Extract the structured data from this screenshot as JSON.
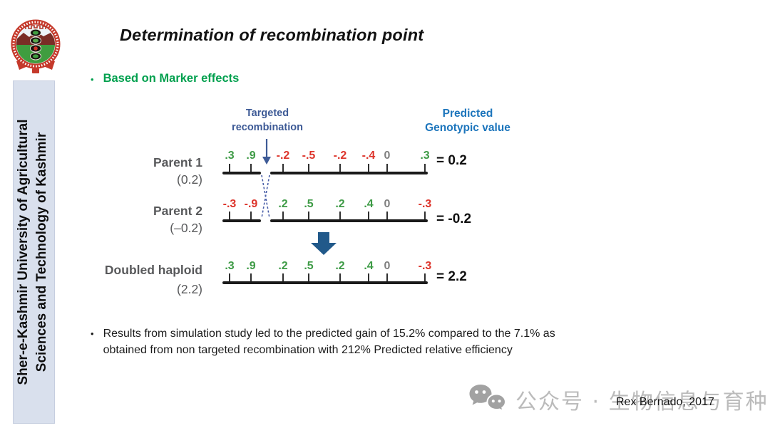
{
  "slide": {
    "title": "Determination of recombination point",
    "bullet_char": "•",
    "section_bullet": "Based on Marker effects",
    "results_line1": "Results from simulation study led to the predicted gain of 15.2% compared to the 7.1% as",
    "results_line2": "obtained from non targeted recombination with 212% Predicted relative efficiency",
    "citation": "Rex Bernado, 2017"
  },
  "sidebar": {
    "institution_line1": "Sher-e-Kashmir University of Agricultural",
    "institution_line2": "Sciences and Technology of Kashmir",
    "logo": "university-emblem"
  },
  "diagram": {
    "targeted_label": [
      "Targeted",
      "recombination"
    ],
    "predicted_label": [
      "Predicted",
      "Genotypic value"
    ],
    "rows": [
      {
        "name": "Parent 1",
        "paren": "(0.2)",
        "result": "= 0.2",
        "broken": true,
        "markers": [
          {
            "v": ".3",
            "c": "green"
          },
          {
            "v": ".9",
            "c": "green"
          },
          {
            "v": "-.2",
            "c": "red"
          },
          {
            "v": "-.5",
            "c": "red"
          },
          {
            "v": "-.2",
            "c": "red"
          },
          {
            "v": "-.4",
            "c": "red"
          },
          {
            "v": "0",
            "c": "gray"
          },
          {
            "v": ".3",
            "c": "green"
          }
        ]
      },
      {
        "name": "Parent 2",
        "paren": "(–0.2)",
        "result": "= -0.2",
        "broken": true,
        "markers": [
          {
            "v": "-.3",
            "c": "red"
          },
          {
            "v": "-.9",
            "c": "red"
          },
          {
            "v": ".2",
            "c": "green"
          },
          {
            "v": ".5",
            "c": "green"
          },
          {
            "v": ".2",
            "c": "green"
          },
          {
            "v": ".4",
            "c": "green"
          },
          {
            "v": "0",
            "c": "gray"
          },
          {
            "v": "-.3",
            "c": "red"
          }
        ]
      },
      {
        "name": "Doubled haploid",
        "paren": "(2.2)",
        "result": "= 2.2",
        "broken": false,
        "markers": [
          {
            "v": ".3",
            "c": "green"
          },
          {
            "v": ".9",
            "c": "green"
          },
          {
            "v": ".2",
            "c": "green"
          },
          {
            "v": ".5",
            "c": "green"
          },
          {
            "v": ".2",
            "c": "green"
          },
          {
            "v": ".4",
            "c": "green"
          },
          {
            "v": "0",
            "c": "gray"
          },
          {
            "v": "-.3",
            "c": "red"
          }
        ]
      }
    ]
  },
  "watermark": {
    "icon": "wechat-icon",
    "text": "公众号 · 生物信息与育种"
  },
  "colors": {
    "marker_green": "#3E9B46",
    "marker_red": "#DD342B",
    "marker_gray": "#7F7F7F",
    "label_gray": "#58595B",
    "predicted_blue": "#1C75BC",
    "targeted_slate": "#3D5A96",
    "crossover_blue": "#4A5FA8",
    "section_green": "#00A04E",
    "arrow_blue": "#21598A",
    "sidebar_bg": "#D9E0ED",
    "watermark_gray": "#BBBBBB"
  }
}
